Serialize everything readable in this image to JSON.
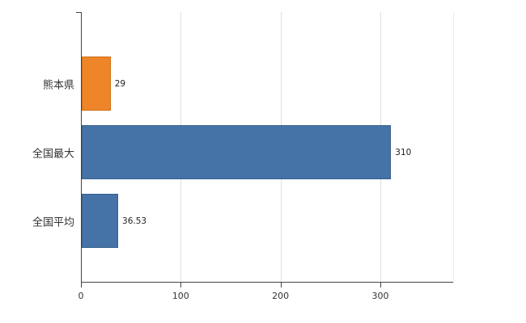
{
  "chart_data": {
    "type": "bar",
    "orientation": "horizontal",
    "title": "",
    "xlabel": "",
    "ylabel": "",
    "categories": [
      "熊本県",
      "全国最大",
      "全国平均"
    ],
    "values": [
      29,
      310,
      36.53
    ],
    "value_labels": [
      "29",
      "310",
      "36.53"
    ],
    "bar_colors": [
      "#ee8629",
      "#4573a7",
      "#4573a7"
    ],
    "bar_border_colors": [
      "#cf6d15",
      "#355f8c",
      "#355f8c"
    ],
    "x_ticks": [
      0,
      100,
      200,
      300
    ],
    "x_tick_labels": [
      "0",
      "100",
      "200",
      "300"
    ],
    "xlim": [
      0,
      373
    ],
    "grid": "vertical",
    "legend": false,
    "axis_color": "#444444",
    "gridline_color": "#e0e0e0",
    "label_color": "#333333",
    "background_color": "#ffffff"
  }
}
